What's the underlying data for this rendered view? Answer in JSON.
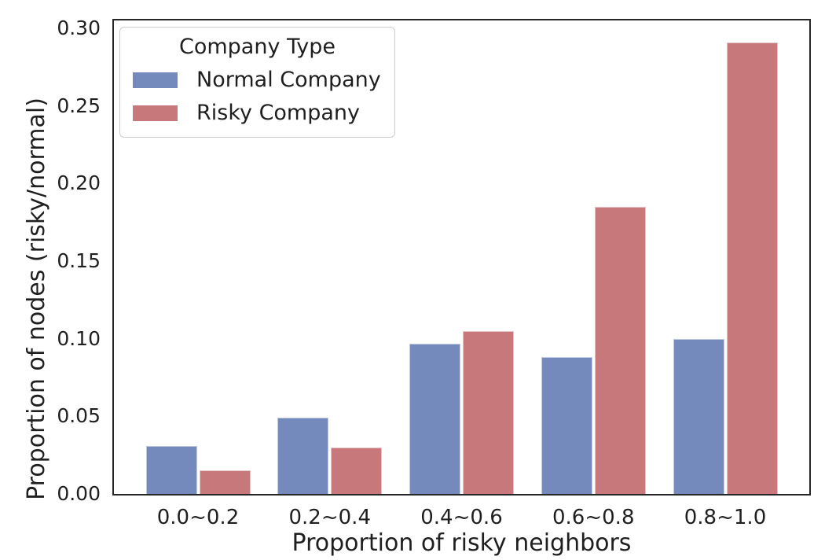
{
  "chart_data": {
    "type": "bar",
    "title": "",
    "xlabel": "Proportion of risky neighbors",
    "ylabel": "Proportion of nodes (risky/normal)",
    "categories": [
      "0.0~0.2",
      "0.2~0.4",
      "0.4~0.6",
      "0.6~0.8",
      "0.8~1.0"
    ],
    "series": [
      {
        "name": "Normal Company",
        "color": "#7489BC",
        "values": [
          0.031,
          0.049,
          0.097,
          0.088,
          0.1
        ]
      },
      {
        "name": "Risky Company",
        "color": "#C6787B",
        "values": [
          0.015,
          0.03,
          0.105,
          0.185,
          0.291
        ]
      }
    ],
    "legend": {
      "title": "Company Type",
      "position": "upper left"
    },
    "yticks": [
      "0.00",
      "0.05",
      "0.10",
      "0.15",
      "0.20",
      "0.25",
      "0.30"
    ],
    "ylim": [
      0,
      0.305
    ],
    "grid": false,
    "colors": {
      "axis_spine": "#262626",
      "text": "#1f1f1f",
      "legend_border": "#cccccc",
      "background": "#ffffff"
    }
  }
}
